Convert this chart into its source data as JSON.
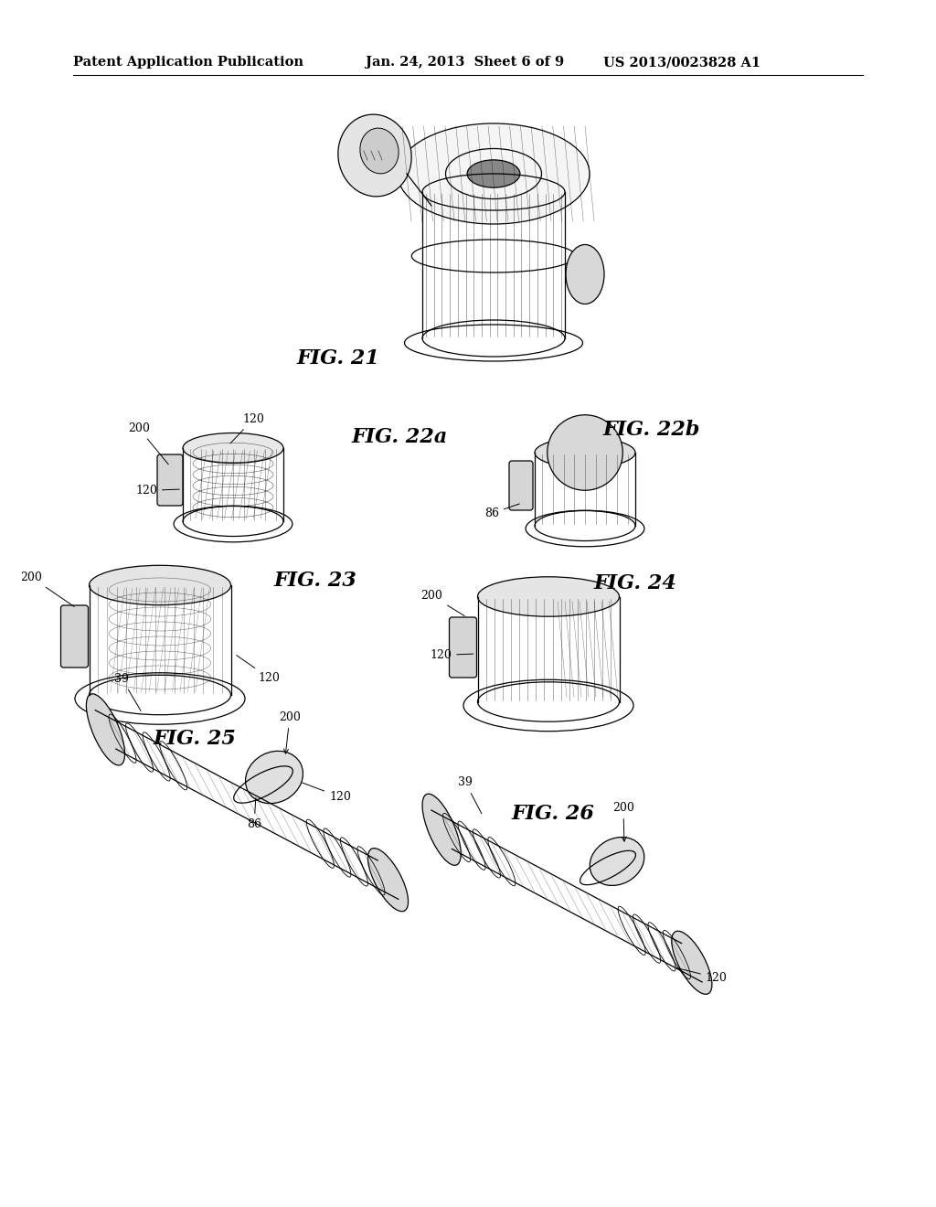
{
  "background_color": "#ffffff",
  "header_left": "Patent Application Publication",
  "header_middle": "Jan. 24, 2013  Sheet 6 of 9",
  "header_right": "US 2013/0023828 A1",
  "fig21_label": "FIG. 21",
  "fig22a_label": "FIG. 22a",
  "fig22b_label": "FIG. 22b",
  "fig23_label": "FIG. 23",
  "fig24_label": "FIG. 24",
  "fig25_label": "FIG. 25",
  "fig26_label": "FIG. 26"
}
